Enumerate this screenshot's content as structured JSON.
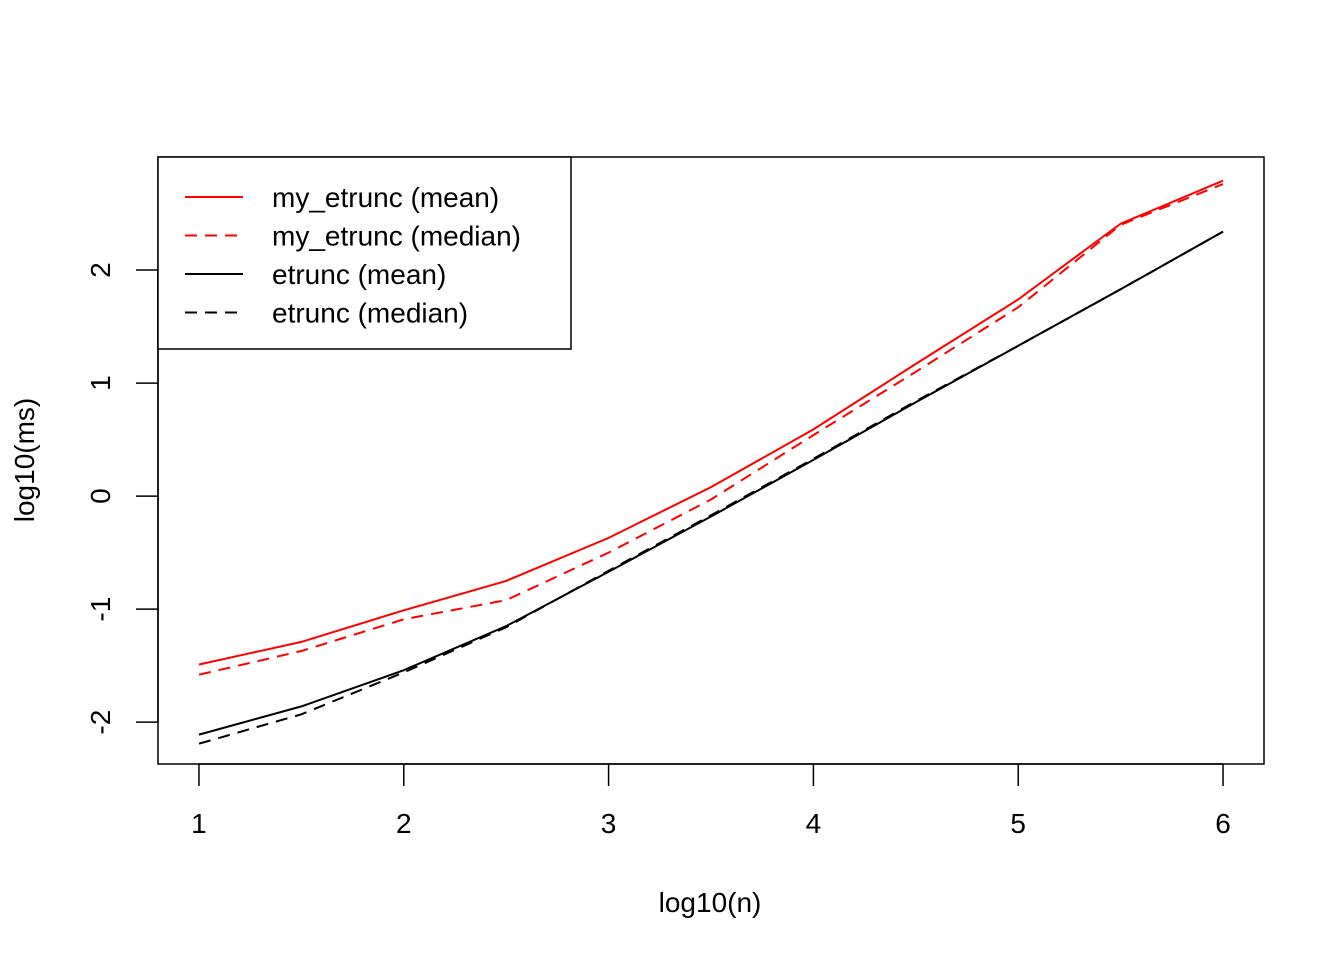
{
  "chart_data": {
    "type": "line",
    "title": "",
    "xlabel": "log10(n)",
    "ylabel": "log10(ms)",
    "xlim": [
      0.8,
      6.2
    ],
    "ylim": [
      -2.37,
      3.0
    ],
    "xticks": [
      1,
      2,
      3,
      4,
      5,
      6
    ],
    "yticks": [
      -2,
      -1,
      0,
      1,
      2
    ],
    "xtick_labels": [
      "1",
      "2",
      "3",
      "4",
      "5",
      "6"
    ],
    "ytick_labels": [
      "-2",
      "-1",
      "0",
      "1",
      "2"
    ],
    "grid": false,
    "legend_position": "top-left",
    "x": [
      1,
      1.5,
      2,
      2.5,
      3,
      3.5,
      4,
      4.5,
      5,
      5.5,
      6
    ],
    "series": [
      {
        "name": "my_etrunc (mean)",
        "color": "#ff0000",
        "dash": "solid",
        "values": [
          -1.49,
          -1.29,
          -1.01,
          -0.75,
          -0.37,
          0.08,
          0.59,
          1.17,
          1.74,
          2.41,
          2.79
        ]
      },
      {
        "name": "my_etrunc (median)",
        "color": "#ff0000",
        "dash": "dashed",
        "values": [
          -1.58,
          -1.37,
          -1.09,
          -0.92,
          -0.5,
          -0.03,
          0.54,
          1.1,
          1.67,
          2.4,
          2.76
        ]
      },
      {
        "name": "etrunc (mean)",
        "color": "#000000",
        "dash": "solid",
        "values": [
          -2.11,
          -1.86,
          -1.54,
          -1.15,
          -0.67,
          -0.18,
          0.32,
          0.83,
          1.33,
          1.83,
          2.34
        ]
      },
      {
        "name": "etrunc (median)",
        "color": "#000000",
        "dash": "dashed",
        "values": [
          -2.19,
          -1.93,
          -1.56,
          -1.16,
          -0.66,
          -0.17,
          0.33,
          0.84,
          1.33,
          1.83,
          2.34
        ]
      }
    ]
  }
}
